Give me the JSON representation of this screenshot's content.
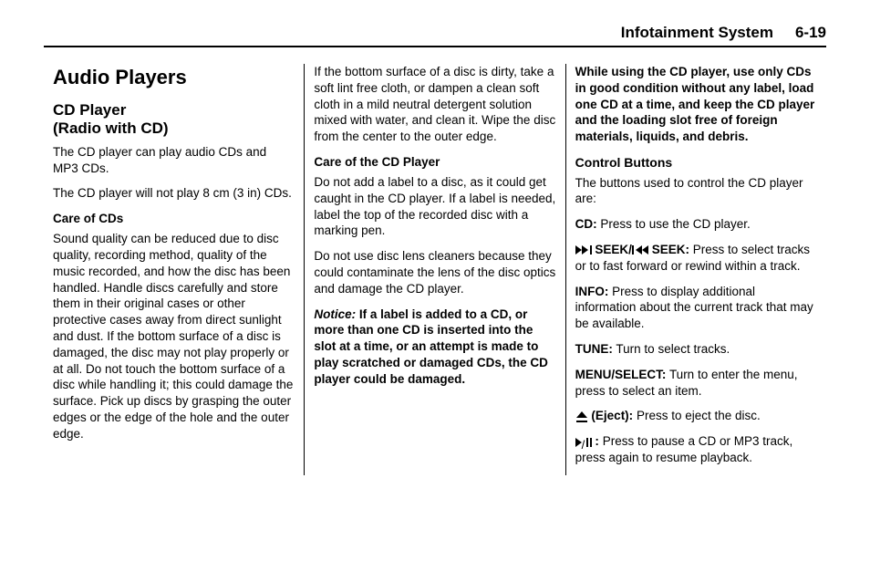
{
  "header": {
    "section": "Infotainment System",
    "page": "6-19"
  },
  "col1": {
    "h1": "Audio Players",
    "h2_line1": "CD Player",
    "h2_line2": "(Radio with CD)",
    "p1": "The CD player can play audio CDs and MP3 CDs.",
    "p2": "The CD player will not play 8 cm (3 in) CDs.",
    "h3": "Care of CDs",
    "p3": "Sound quality can be reduced due to disc quality, recording method, quality of the music recorded, and how the disc has been handled. Handle discs carefully and store them in their original cases or other protective cases away from direct sunlight and dust. If the bottom surface of a disc is damaged, the disc may not play properly or at all. Do not touch the bottom surface of a disc while handling it; this could damage the surface. Pick up discs by grasping the outer edges or the edge of the hole and the outer edge."
  },
  "col2": {
    "p1": "If the bottom surface of a disc is dirty, take a soft lint free cloth, or dampen a clean soft cloth in a mild neutral detergent solution mixed with water, and clean it. Wipe the disc from the center to the outer edge.",
    "h3": "Care of the CD Player",
    "p2": "Do not add a label to a disc, as it could get caught in the CD player. If a label is needed, label the top of the recorded disc with a marking pen.",
    "p3": "Do not use disc lens cleaners because they could contaminate the lens of the disc optics and damage the CD player.",
    "notice_label": "Notice:",
    "notice_text": "If a label is added to a CD, or more than one CD is inserted into the slot at a time, or an attempt is made to play scratched or damaged CDs, the CD player could be damaged."
  },
  "col3": {
    "warning": "While using the CD player, use only CDs in good condition without any label, load one CD at a time, and keep the CD player and the loading slot free of foreign materials, liquids, and debris.",
    "h3": "Control Buttons",
    "intro": "The buttons used to control the CD player are:",
    "cd_label": "CD:",
    "cd_text": "Press to use the CD player.",
    "seek_word1": "SEEK/",
    "seek_word2": "SEEK:",
    "seek_text": "Press to select tracks or to fast forward or rewind within a track.",
    "info_label": "INFO:",
    "info_text": "Press to display additional information about the current track that may be available.",
    "tune_label": "TUNE:",
    "tune_text": "Turn to select tracks.",
    "menu_label": "MENU/SELECT:",
    "menu_text": "Turn to enter the menu, press to select an item.",
    "eject_label": "(Eject):",
    "eject_text": "Press to eject the disc.",
    "play_colon": ":",
    "play_text": "Press to pause a CD or MP3 track, press again to resume playback."
  }
}
